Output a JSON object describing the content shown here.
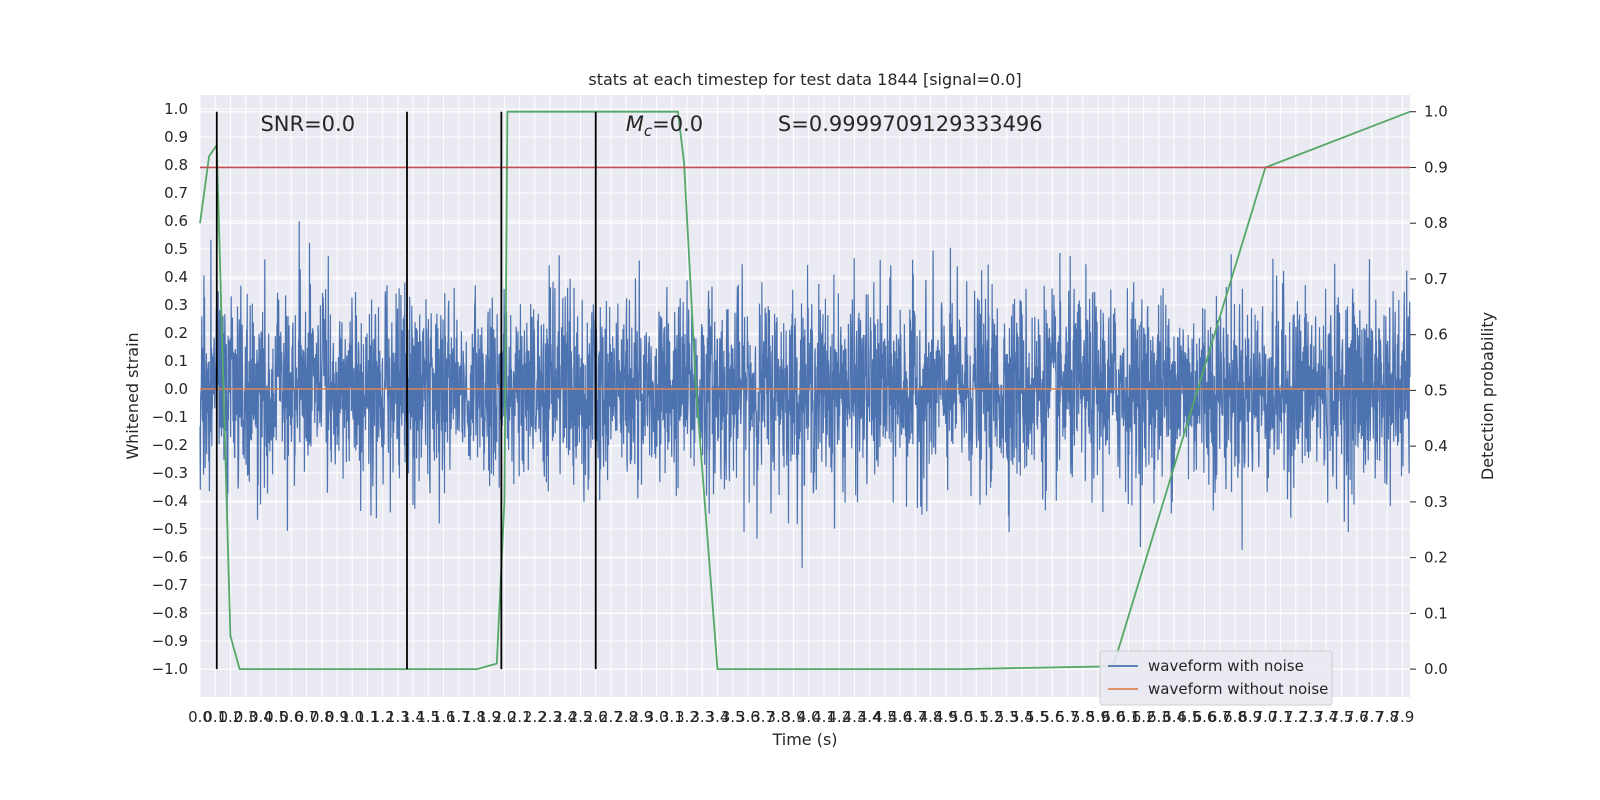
{
  "chart_data": {
    "type": "line",
    "title": "stats at each timestep for test data 1844 [signal=0.0]",
    "xlabel": "Time (s)",
    "ylabel_left": "Whitened strain",
    "ylabel_right": "Detection probability",
    "xlim": [
      0.0,
      7.95
    ],
    "ylim_left": [
      -1.1,
      1.05
    ],
    "ylim_right": [
      -0.05,
      1.03
    ],
    "x_ticks": [
      0.0,
      0.1,
      0.2,
      0.3,
      0.4,
      0.5,
      0.6,
      0.7,
      0.8,
      0.9,
      1.0,
      1.1,
      1.2,
      1.3,
      1.4,
      1.5,
      1.6,
      1.7,
      1.8,
      1.9,
      2.0,
      2.1,
      2.2,
      2.3,
      2.4,
      2.5,
      2.6,
      2.7,
      2.8,
      2.9,
      3.0,
      3.1,
      3.2,
      3.3,
      3.4,
      3.5,
      3.6,
      3.7,
      3.8,
      3.9,
      4.0,
      4.1,
      4.2,
      4.3,
      4.4,
      4.5,
      4.6,
      4.7,
      4.8,
      4.9,
      5.0,
      5.1,
      5.2,
      5.3,
      5.4,
      5.5,
      5.6,
      5.7,
      5.8,
      5.9,
      6.0,
      6.1,
      6.2,
      6.3,
      6.4,
      6.5,
      6.6,
      6.7,
      6.8,
      6.9,
      7.0,
      7.1,
      7.2,
      7.3,
      7.4,
      7.5,
      7.6,
      7.7,
      7.8,
      7.9
    ],
    "y_ticks_left": [
      -1.0,
      -0.9,
      -0.8,
      -0.7,
      -0.6,
      -0.5,
      -0.4,
      -0.3,
      -0.2,
      -0.1,
      0.0,
      0.1,
      0.2,
      0.3,
      0.4,
      0.5,
      0.6,
      0.7,
      0.8,
      0.9,
      1.0
    ],
    "y_ticks_right": [
      0.0,
      0.1,
      0.2,
      0.3,
      0.4,
      0.5,
      0.6,
      0.7,
      0.8,
      0.9,
      1.0
    ],
    "grid": true,
    "legend_position": "lower-right",
    "annotations": [
      {
        "text": "SNR=0.0",
        "x": 0.2,
        "y": 0.95
      },
      {
        "text": "M_c=0.0",
        "x": 2.6,
        "y": 0.95
      },
      {
        "text": "S=0.9999709129333496",
        "x": 3.6,
        "y": 0.95
      }
    ],
    "series": [
      {
        "name": "waveform with noise",
        "axis": "left",
        "color": "#4c72b0",
        "kind": "noise",
        "sigma": 0.17,
        "envelope": [
          -1.0,
          0.95
        ]
      },
      {
        "name": "waveform without noise",
        "axis": "left",
        "color": "#dd8452",
        "kind": "constant",
        "value": 0.0
      },
      {
        "axis": "right",
        "color": "#55a868",
        "kind": "line",
        "x": [
          0.0,
          0.06,
          0.11,
          0.2,
          0.26,
          0.3,
          0.5,
          1.0,
          1.5,
          1.82,
          1.95,
          2.0,
          2.02,
          2.4,
          2.8,
          3.14,
          3.18,
          3.26,
          3.4,
          3.6,
          4.0,
          5.0,
          6.0,
          7.0,
          7.95
        ],
        "values": [
          0.8,
          0.92,
          0.94,
          0.06,
          0.0,
          0.0,
          0.0,
          0.0,
          0.0,
          0.0,
          0.01,
          0.3,
          1.0,
          1.0,
          1.0,
          1.0,
          0.91,
          0.5,
          0.0,
          0.0,
          0.0,
          0.0,
          0.005,
          0.9,
          1.0
        ]
      },
      {
        "axis": "right",
        "color": "#c44e52",
        "kind": "constant",
        "value": 0.9
      }
    ],
    "vertical_lines": [
      0.11,
      1.36,
      1.98,
      2.6
    ],
    "vertical_line_color": "#000000",
    "vertical_line_range_right": [
      0.0,
      1.0
    ]
  }
}
